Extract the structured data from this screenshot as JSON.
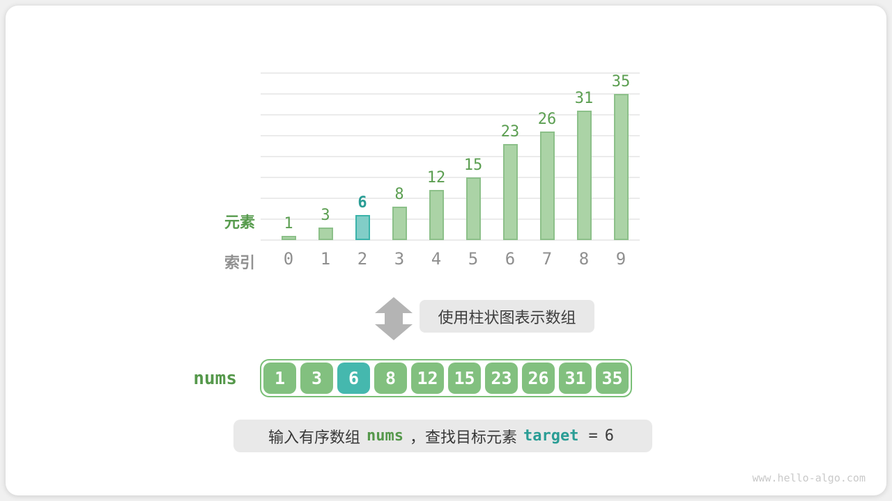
{
  "chart_data": {
    "type": "bar",
    "title": "",
    "xlabel": "索引",
    "ylabel": "元素",
    "categories": [
      "0",
      "1",
      "2",
      "3",
      "4",
      "5",
      "6",
      "7",
      "8",
      "9"
    ],
    "values": [
      1,
      3,
      6,
      8,
      12,
      15,
      23,
      26,
      31,
      35
    ],
    "highlight_index": 2,
    "ylim": [
      0,
      40
    ],
    "gridline_step": 5,
    "grid": true,
    "legend": false
  },
  "chart": {
    "element_axis_label": "元素",
    "index_axis_label": "索引"
  },
  "transform": {
    "arrow_icon": "double-vertical-arrow-icon",
    "label": "使用柱状图表示数组"
  },
  "array": {
    "label": "nums",
    "values": [
      "1",
      "3",
      "6",
      "8",
      "12",
      "15",
      "23",
      "26",
      "31",
      "35"
    ],
    "highlight_index": 2
  },
  "caption": {
    "text_1": "输入有序数组",
    "code_nums": "nums",
    "text_2": "，查找目标元素",
    "code_target": "target",
    "equals": "=",
    "target_value": "6"
  },
  "footer": {
    "watermark": "www.hello-algo.com"
  },
  "colors": {
    "bar_green_fill": "#abd3a6",
    "bar_green_border": "#8cc089",
    "bar_teal_fill": "#82cdc7",
    "bar_teal_border": "#3bb3aa",
    "value_label_green": "#5b9e51",
    "value_label_teal": "#2a9d95",
    "cell_green": "#82c07f",
    "cell_teal": "#45b8ae",
    "array_border_green": "#7abf77",
    "text_green": "#55984b",
    "index_gray": "#8f8f8f",
    "arrow_gray": "#b4b4b4",
    "box_gray": "#e8e8e8",
    "text_dark": "#3d3d3d",
    "watermark_gray": "#c9c9c9"
  }
}
